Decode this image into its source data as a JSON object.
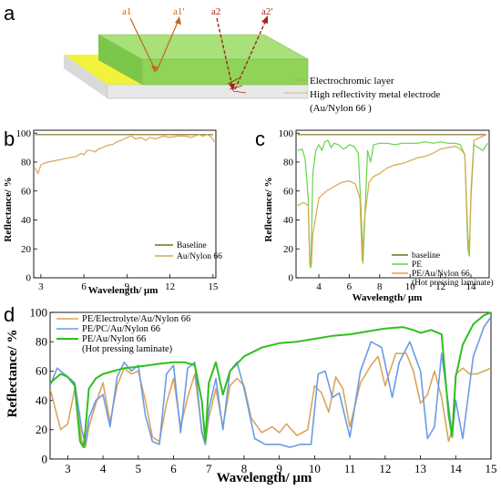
{
  "panel_a": {
    "letter": "a",
    "rays": [
      "a1",
      "a1'",
      "a2",
      "a2'"
    ],
    "labels": [
      "Electrochromic layer",
      "High reflectivity metal electrode",
      "(Au/Nylon 66 )"
    ]
  },
  "colors": {
    "baseline": "#7a6f1a",
    "au_nylon": "#d9a65a",
    "pe": "#67d24a",
    "pe_au": "#d8a84a",
    "pc": "#6b9be6",
    "green_dark": "#2fbf1d",
    "top_green": "#a8e07a",
    "yellow": "#f2f23a",
    "arrow1": "#c06820",
    "arrow2": "#a0281a"
  },
  "chart_data": [
    {
      "panel": "b",
      "type": "line",
      "xlabel": "Wavelength/ μm",
      "ylabel": "Reflectance/ %",
      "xlim": [
        2.5,
        15.2
      ],
      "ylim": [
        0,
        102
      ],
      "xticks": [
        3,
        6,
        9,
        12,
        15
      ],
      "yticks": [
        0,
        20,
        40,
        60,
        80,
        100
      ],
      "legend": "bottom-right",
      "series": [
        {
          "name": "Baseline",
          "key": "baseline",
          "x": [
            2.6,
            3,
            4,
            5,
            6,
            7,
            8,
            9,
            10,
            11,
            12,
            13,
            14,
            15
          ],
          "y": [
            99,
            99,
            99,
            99,
            99,
            99,
            99,
            99,
            99,
            99,
            99,
            99,
            99,
            99
          ]
        },
        {
          "name": "Au/Nylon 66",
          "key": "au_nylon",
          "x": [
            2.6,
            2.8,
            3.0,
            3.2,
            3.5,
            4.0,
            4.5,
            5.0,
            5.5,
            5.8,
            6.0,
            6.2,
            6.5,
            6.8,
            7.0,
            7.3,
            7.5,
            7.8,
            8.0,
            8.3,
            8.6,
            9.0,
            9.3,
            9.6,
            10.0,
            10.3,
            10.6,
            11.0,
            11.5,
            12.0,
            12.5,
            13.0,
            13.5,
            14.0,
            14.3,
            14.6,
            14.9,
            15.1
          ],
          "y": [
            76,
            72,
            78,
            79,
            80,
            81,
            82,
            83,
            84,
            86,
            85,
            88,
            88,
            87,
            89,
            90,
            91,
            92,
            92,
            94,
            95,
            97,
            98,
            96,
            97,
            95,
            97,
            96,
            98,
            97,
            98,
            98,
            97,
            99,
            98,
            99,
            97,
            94
          ]
        }
      ]
    },
    {
      "panel": "c",
      "type": "line",
      "xlabel": "Wavelength/ μm",
      "ylabel": "Reflectance/ %",
      "xlim": [
        2.5,
        15.2
      ],
      "ylim": [
        0,
        102
      ],
      "xticks": [
        4,
        6,
        8,
        10,
        12,
        14
      ],
      "yticks": [
        0,
        20,
        40,
        60,
        80,
        100
      ],
      "legend": "bottom-right",
      "series": [
        {
          "name": "baseline",
          "key": "baseline",
          "x": [
            2.6,
            4,
            6,
            8,
            10,
            12,
            14,
            15
          ],
          "y": [
            99,
            99,
            99,
            99,
            99,
            99,
            99,
            99
          ]
        },
        {
          "name": "PE",
          "key": "pe",
          "x": [
            2.6,
            2.9,
            3.1,
            3.3,
            3.4,
            3.45,
            3.5,
            3.6,
            3.8,
            4.0,
            4.2,
            4.4,
            4.6,
            4.8,
            5.0,
            5.3,
            5.6,
            5.8,
            6.0,
            6.3,
            6.6,
            6.8,
            6.9,
            7.0,
            7.2,
            7.4,
            7.6,
            8.0,
            8.5,
            9.0,
            9.5,
            10.0,
            10.5,
            11.0,
            11.5,
            12.0,
            12.5,
            13.0,
            13.3,
            13.6,
            13.8,
            13.9,
            14.0,
            14.2,
            14.5,
            14.8,
            15.1
          ],
          "y": [
            88,
            89,
            82,
            55,
            10,
            7,
            20,
            72,
            88,
            92,
            88,
            94,
            95,
            90,
            93,
            92,
            89,
            90,
            92,
            91,
            86,
            40,
            10,
            35,
            88,
            80,
            92,
            93,
            93,
            92,
            93,
            93,
            93,
            94,
            93,
            94,
            93,
            93,
            92,
            85,
            20,
            15,
            55,
            92,
            90,
            88,
            93
          ]
        },
        {
          "name": "PE/Au/Nylon 66",
          "key": "pe_au",
          "note": "(Hot pressing laminate)",
          "x": [
            2.6,
            3.0,
            3.3,
            3.4,
            3.5,
            3.6,
            4.0,
            4.5,
            5.0,
            5.5,
            6.0,
            6.4,
            6.7,
            6.85,
            7.0,
            7.3,
            7.6,
            8.0,
            8.5,
            9.0,
            9.5,
            10.0,
            10.5,
            11.0,
            11.5,
            12.0,
            12.5,
            13.0,
            13.4,
            13.6,
            13.8,
            13.9,
            14.0,
            14.2,
            14.6,
            15.0
          ],
          "y": [
            50,
            52,
            50,
            12,
            8,
            30,
            55,
            60,
            63,
            66,
            67,
            65,
            55,
            12,
            40,
            66,
            70,
            72,
            76,
            78,
            79,
            81,
            83,
            84,
            86,
            89,
            90,
            91,
            88,
            85,
            30,
            17,
            60,
            95,
            97,
            99
          ]
        }
      ]
    },
    {
      "panel": "d",
      "type": "line",
      "xlabel": "Wavelength/ μm",
      "ylabel": "Reflectance/ %",
      "xlim": [
        2.5,
        15
      ],
      "ylim": [
        0,
        100
      ],
      "xticks": [
        3,
        4,
        5,
        6,
        7,
        8,
        9,
        10,
        11,
        12,
        13,
        14,
        15
      ],
      "yticks": [
        0,
        20,
        40,
        60,
        80,
        100
      ],
      "legend": "top-left",
      "series": [
        {
          "name": "PE/Electrolyte/Au/Nylon 66",
          "key": "au_nylon",
          "x": [
            2.5,
            2.8,
            3.0,
            3.2,
            3.4,
            3.5,
            3.6,
            3.8,
            4.0,
            4.2,
            4.4,
            4.6,
            4.8,
            5.0,
            5.2,
            5.4,
            5.6,
            5.8,
            6.0,
            6.2,
            6.4,
            6.6,
            6.8,
            6.9,
            7.0,
            7.2,
            7.4,
            7.6,
            7.8,
            8.0,
            8.2,
            8.5,
            8.8,
            9.0,
            9.2,
            9.5,
            9.8,
            10.0,
            10.2,
            10.4,
            10.6,
            10.8,
            11.0,
            11.3,
            11.6,
            11.8,
            12.0,
            12.3,
            12.6,
            12.8,
            13.0,
            13.2,
            13.4,
            13.6,
            13.8,
            13.9,
            14.0,
            14.2,
            14.4,
            14.6,
            14.8,
            15.0
          ],
          "y": [
            48,
            20,
            24,
            48,
            12,
            8,
            22,
            38,
            52,
            25,
            50,
            62,
            58,
            60,
            40,
            15,
            12,
            38,
            55,
            22,
            42,
            58,
            20,
            10,
            28,
            48,
            22,
            50,
            55,
            50,
            28,
            18,
            22,
            18,
            24,
            16,
            20,
            50,
            45,
            32,
            56,
            48,
            22,
            52,
            64,
            70,
            50,
            72,
            72,
            60,
            38,
            44,
            60,
            42,
            12,
            20,
            58,
            62,
            58,
            58,
            60,
            62
          ]
        },
        {
          "name": "PE/PC/Au/Nylon 66",
          "key": "pc",
          "x": [
            2.5,
            2.7,
            3.0,
            3.2,
            3.4,
            3.5,
            3.6,
            3.8,
            4.0,
            4.2,
            4.4,
            4.6,
            4.8,
            5.0,
            5.2,
            5.4,
            5.6,
            5.8,
            6.0,
            6.2,
            6.4,
            6.6,
            6.8,
            6.9,
            7.0,
            7.2,
            7.4,
            7.6,
            7.8,
            8.0,
            8.3,
            8.6,
            9.0,
            9.3,
            9.6,
            9.9,
            10.1,
            10.3,
            10.5,
            10.7,
            11.0,
            11.3,
            11.6,
            11.9,
            12.2,
            12.4,
            12.7,
            13.0,
            13.2,
            13.4,
            13.6,
            13.8,
            13.9,
            14.0,
            14.2,
            14.5,
            14.8,
            15.0
          ],
          "y": [
            50,
            62,
            56,
            52,
            20,
            10,
            28,
            40,
            44,
            22,
            56,
            66,
            60,
            64,
            30,
            12,
            10,
            58,
            64,
            18,
            62,
            66,
            18,
            10,
            34,
            55,
            20,
            60,
            66,
            48,
            14,
            10,
            10,
            8,
            10,
            10,
            58,
            60,
            42,
            45,
            15,
            60,
            80,
            76,
            42,
            66,
            80,
            60,
            14,
            22,
            72,
            36,
            16,
            40,
            14,
            70,
            90,
            97
          ]
        },
        {
          "name": "PE/Au/Nylon 66",
          "key": "green_dark",
          "note": "(Hot pressing laminate)",
          "x": [
            2.5,
            2.8,
            3.0,
            3.2,
            3.35,
            3.45,
            3.5,
            3.6,
            3.8,
            4.0,
            4.3,
            4.6,
            5.0,
            5.3,
            5.6,
            6.0,
            6.3,
            6.6,
            6.8,
            6.9,
            7.0,
            7.2,
            7.4,
            7.6,
            8.0,
            8.5,
            9.0,
            9.5,
            10.0,
            10.5,
            11.0,
            11.5,
            12.0,
            12.5,
            12.8,
            13.0,
            13.3,
            13.6,
            13.8,
            13.9,
            14.0,
            14.2,
            14.5,
            14.8,
            15.0
          ],
          "y": [
            52,
            58,
            56,
            50,
            12,
            8,
            20,
            48,
            55,
            58,
            60,
            62,
            63,
            64,
            65,
            66,
            66,
            64,
            40,
            12,
            52,
            66,
            44,
            60,
            70,
            76,
            79,
            80,
            82,
            84,
            85,
            87,
            89,
            90,
            88,
            86,
            88,
            85,
            30,
            15,
            56,
            78,
            92,
            98,
            100
          ]
        }
      ]
    }
  ]
}
